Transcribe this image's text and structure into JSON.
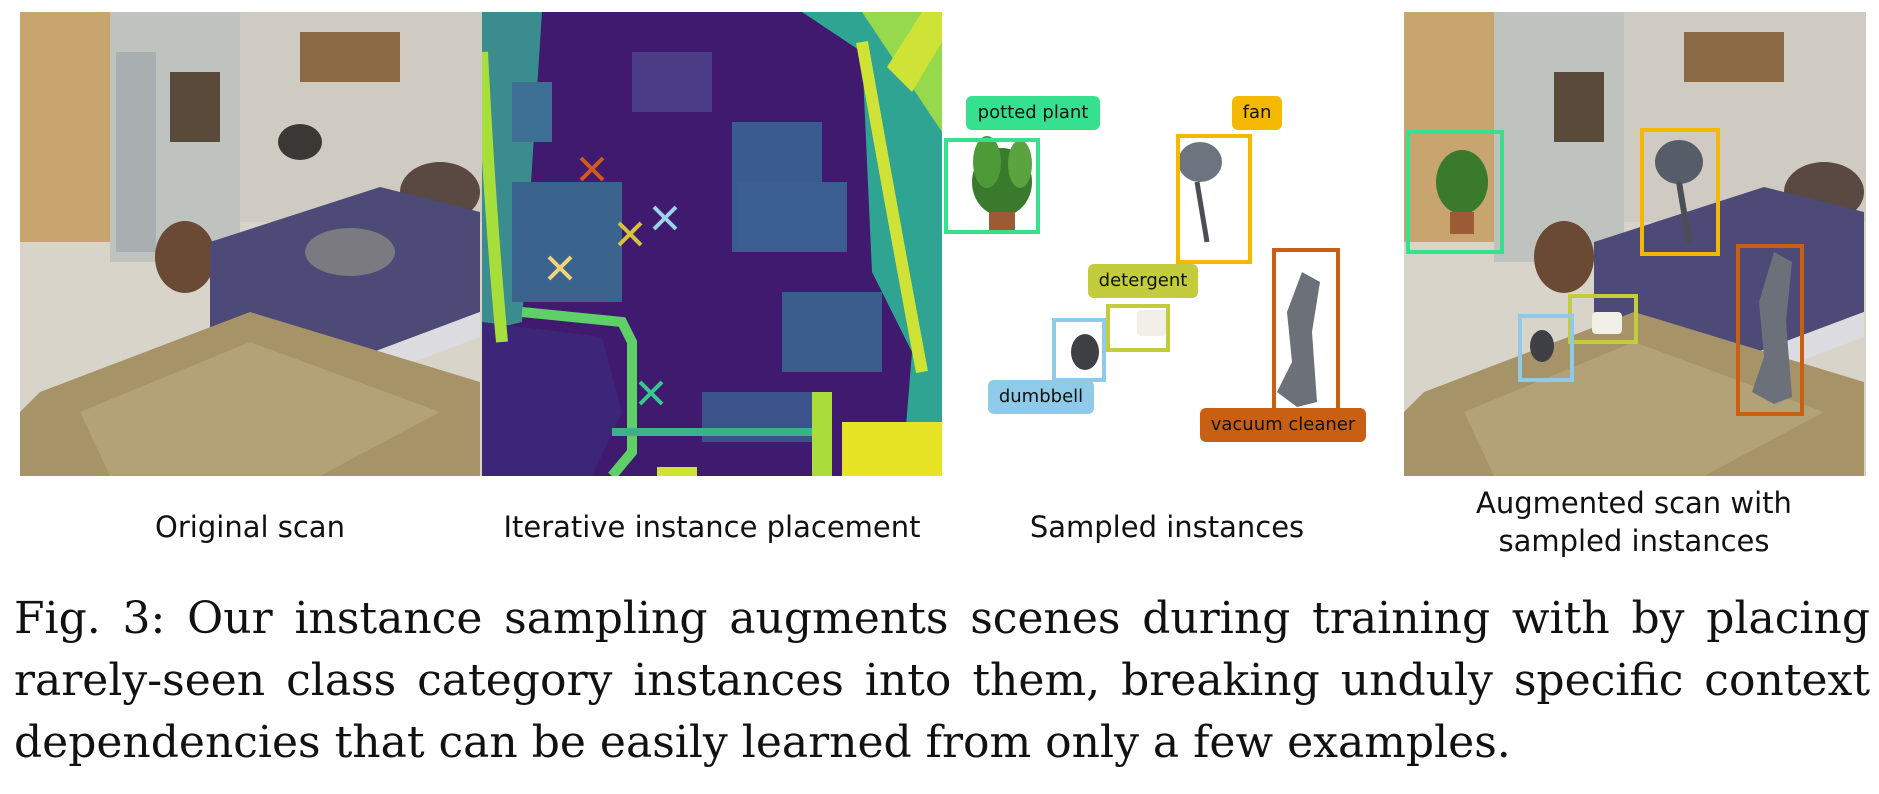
{
  "figure": {
    "panel_titles": {
      "original": "Original scan",
      "placement": "Iterative instance placement",
      "sampled": "Sampled instances",
      "augmented": "Augmented scan with sampled instances"
    },
    "instance_labels": [
      {
        "id": "potted-plant",
        "text": "potted plant",
        "color": "#35e08f"
      },
      {
        "id": "fan",
        "text": "fan",
        "color": "#f5b800"
      },
      {
        "id": "detergent",
        "text": "detergent",
        "color": "#c2cc3c"
      },
      {
        "id": "dumbbell",
        "text": "dumbbell",
        "color": "#8fcbe8"
      },
      {
        "id": "vacuum-cleaner",
        "text": "vacuum cleaner",
        "color": "#c95f12"
      }
    ],
    "placement_marker_colors": [
      "#cf5a1c",
      "#d8c23a",
      "#9ed1ea",
      "#f2d27a",
      "#35c98f"
    ]
  },
  "caption": {
    "text": "Fig. 3: Our instance sampling augments scenes during training with by placing rarely-seen class category instances into them, breaking unduly specific context dependencies that can be easily learned from only a few examples."
  }
}
